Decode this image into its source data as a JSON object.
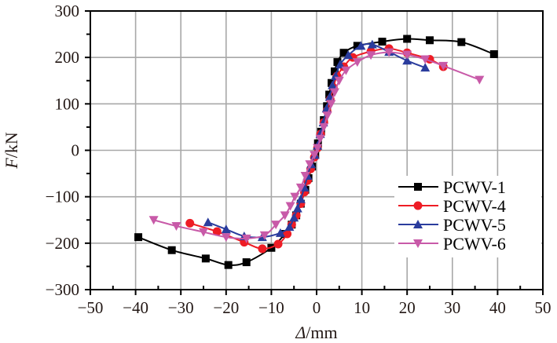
{
  "chart_data": {
    "type": "line",
    "title": "",
    "xlabel_italic": "Δ",
    "xlabel_unit": "/mm",
    "ylabel_italic": "F",
    "ylabel_unit": "/kN",
    "xlim": [
      -50,
      50
    ],
    "ylim": [
      -300,
      300
    ],
    "x_ticks": [
      -50,
      -40,
      -30,
      -20,
      -10,
      0,
      10,
      20,
      30,
      40,
      50
    ],
    "x_tick_labels": [
      "−50",
      "−40",
      "−30",
      "−20",
      "−10",
      "0",
      "10",
      "20",
      "30",
      "40",
      "50"
    ],
    "y_ticks": [
      300,
      200,
      100,
      0,
      -100,
      -200,
      -300
    ],
    "y_tick_labels": [
      "300",
      "200",
      "100",
      "0",
      "−100",
      "−200",
      "−300"
    ],
    "grid": true,
    "legend_position": "lower-right",
    "series": [
      {
        "name": "PCWV-1",
        "color": "#000000",
        "marker": "square",
        "points": [
          [
            -39.4,
            -187
          ],
          [
            -32,
            -215
          ],
          [
            -24.5,
            -233
          ],
          [
            -19.5,
            -247
          ],
          [
            -15.5,
            -241
          ],
          [
            -10,
            -210
          ],
          [
            -7,
            -180
          ],
          [
            -5.5,
            -160
          ],
          [
            -4.5,
            -140
          ],
          [
            -3.5,
            -115
          ],
          [
            -2.5,
            -85
          ],
          [
            -1.8,
            -60
          ],
          [
            -1,
            -35
          ],
          [
            -0.3,
            -10
          ],
          [
            0.3,
            15
          ],
          [
            1,
            40
          ],
          [
            1.6,
            65
          ],
          [
            2.3,
            95
          ],
          [
            2.8,
            120
          ],
          [
            3.3,
            145
          ],
          [
            4,
            170
          ],
          [
            4.6,
            190
          ],
          [
            6,
            210
          ],
          [
            9,
            225
          ],
          [
            14.5,
            234
          ],
          [
            20,
            240
          ],
          [
            25,
            237
          ],
          [
            32,
            233
          ],
          [
            39.2,
            207
          ]
        ]
      },
      {
        "name": "PCWV-4",
        "color": "#ee1c25",
        "marker": "circle",
        "points": [
          [
            -28,
            -157
          ],
          [
            -22,
            -175
          ],
          [
            -16,
            -198
          ],
          [
            -12,
            -212
          ],
          [
            -8.5,
            -202
          ],
          [
            -6.5,
            -180
          ],
          [
            -5.5,
            -160
          ],
          [
            -4.5,
            -140
          ],
          [
            -3.5,
            -115
          ],
          [
            -2.7,
            -90
          ],
          [
            -2,
            -65
          ],
          [
            -1.3,
            -40
          ],
          [
            -0.5,
            -15
          ],
          [
            0.2,
            5
          ],
          [
            0.9,
            35
          ],
          [
            1.6,
            60
          ],
          [
            2.3,
            85
          ],
          [
            3,
            110
          ],
          [
            3.7,
            135
          ],
          [
            4.5,
            160
          ],
          [
            6,
            180
          ],
          [
            8,
            200
          ],
          [
            12,
            213
          ],
          [
            16,
            219
          ],
          [
            20,
            210
          ],
          [
            25,
            196
          ],
          [
            28,
            180
          ]
        ]
      },
      {
        "name": "PCWV-5",
        "color": "#2a3c9d",
        "marker": "triangle-up",
        "points": [
          [
            -24,
            -155
          ],
          [
            -20,
            -170
          ],
          [
            -16,
            -185
          ],
          [
            -12,
            -187
          ],
          [
            -8,
            -178
          ],
          [
            -6,
            -165
          ],
          [
            -5,
            -145
          ],
          [
            -4.2,
            -125
          ],
          [
            -3.5,
            -105
          ],
          [
            -2.7,
            -80
          ],
          [
            -2,
            -55
          ],
          [
            -1.2,
            -30
          ],
          [
            -0.4,
            -10
          ],
          [
            0.2,
            10
          ],
          [
            0.8,
            35
          ],
          [
            1.5,
            60
          ],
          [
            2.2,
            90
          ],
          [
            2.9,
            115
          ],
          [
            3.5,
            140
          ],
          [
            4.2,
            160
          ],
          [
            5.2,
            185
          ],
          [
            7,
            205
          ],
          [
            9.8,
            225
          ],
          [
            12.3,
            228
          ],
          [
            16,
            212
          ],
          [
            20,
            193
          ],
          [
            24,
            178
          ]
        ]
      },
      {
        "name": "PCWV-6",
        "color": "#c85aa8",
        "marker": "triangle-down",
        "points": [
          [
            -36,
            -150
          ],
          [
            -31,
            -163
          ],
          [
            -25,
            -176
          ],
          [
            -20,
            -187
          ],
          [
            -15.5,
            -190
          ],
          [
            -11.5,
            -183
          ],
          [
            -9,
            -160
          ],
          [
            -7,
            -140
          ],
          [
            -5.8,
            -120
          ],
          [
            -4.8,
            -100
          ],
          [
            -3.5,
            -80
          ],
          [
            -2.5,
            -55
          ],
          [
            -1.5,
            -30
          ],
          [
            -0.5,
            -10
          ],
          [
            0.2,
            5
          ],
          [
            0.8,
            25
          ],
          [
            1.6,
            50
          ],
          [
            2.4,
            75
          ],
          [
            3.2,
            100
          ],
          [
            4,
            125
          ],
          [
            5,
            150
          ],
          [
            6.5,
            172
          ],
          [
            9,
            190
          ],
          [
            12,
            205
          ],
          [
            16,
            211
          ],
          [
            20,
            206
          ],
          [
            24,
            196
          ],
          [
            28,
            182
          ],
          [
            36,
            152
          ]
        ]
      }
    ]
  }
}
